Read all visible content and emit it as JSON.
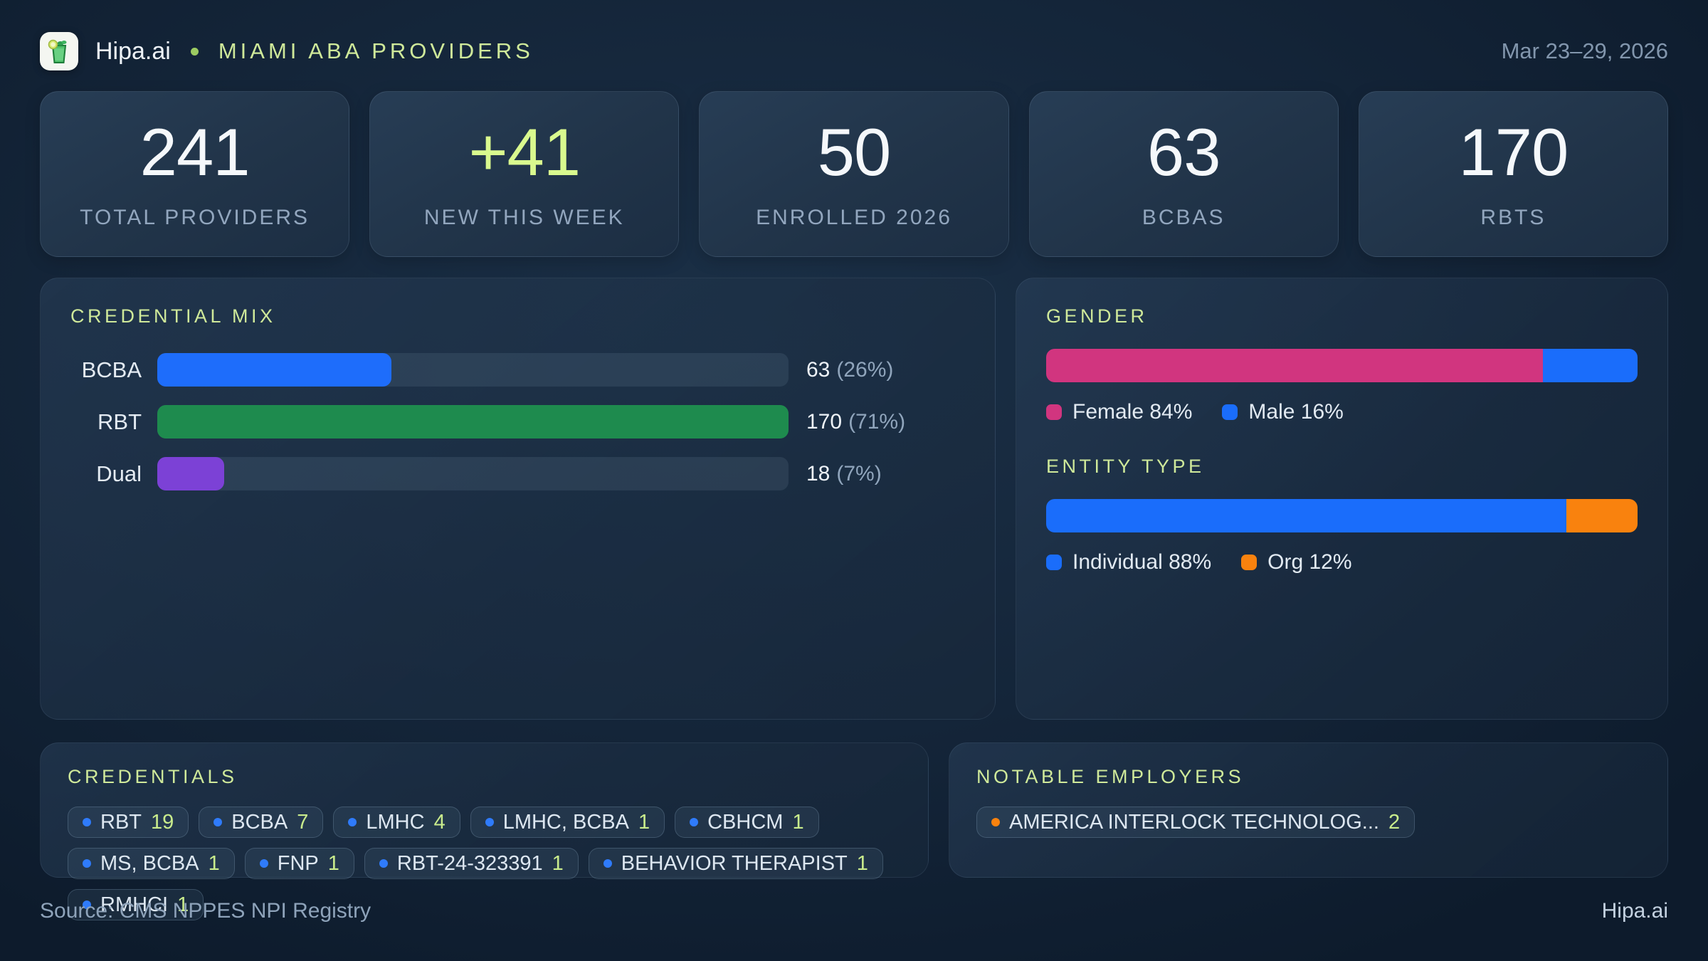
{
  "colors": {
    "accent_green": "#cfe99a",
    "highlight_lime": "#d9f98e",
    "chip_dot_blue": "#2f7bfb",
    "chip_dot_orange": "#f9820e"
  },
  "header": {
    "brand": "Hipa.ai",
    "title": "MIAMI ABA PROVIDERS",
    "date_range": "Mar 23–29, 2026"
  },
  "stats": [
    {
      "value": "241",
      "label": "TOTAL PROVIDERS",
      "accent": false
    },
    {
      "value": "+41",
      "label": "NEW THIS WEEK",
      "accent": true
    },
    {
      "value": "50",
      "label": "ENROLLED 2026",
      "accent": false
    },
    {
      "value": "63",
      "label": "BCBAS",
      "accent": false
    },
    {
      "value": "170",
      "label": "RBTS",
      "accent": false
    }
  ],
  "credential_mix": {
    "title": "CREDENTIAL MIX",
    "rows": [
      {
        "label": "BCBA",
        "value_text": "63",
        "pct_text": "(26%)",
        "color": "#1e6dfb",
        "bar_pct": 37.1
      },
      {
        "label": "RBT",
        "value_text": "170",
        "pct_text": "(71%)",
        "color": "#1e8b4e",
        "bar_pct": 100
      },
      {
        "label": "Dual",
        "value_text": "18",
        "pct_text": "(7%)",
        "color": "#7c41d6",
        "bar_pct": 10.6
      }
    ]
  },
  "gender": {
    "title": "GENDER",
    "segments": [
      {
        "label": "Female",
        "pct": 84,
        "color": "#d1357f"
      },
      {
        "label": "Male",
        "pct": 16,
        "color": "#1a6dfb"
      }
    ]
  },
  "entity_type": {
    "title": "ENTITY TYPE",
    "segments": [
      {
        "label": "Individual",
        "pct": 88,
        "color": "#1a6dfb"
      },
      {
        "label": "Org",
        "pct": 12,
        "color": "#f9820e"
      }
    ]
  },
  "credentials": {
    "title": "CREDENTIALS",
    "chips": [
      {
        "label": "RBT",
        "count": "19"
      },
      {
        "label": "BCBA",
        "count": "7"
      },
      {
        "label": "LMHC",
        "count": "4"
      },
      {
        "label": "LMHC, BCBA",
        "count": "1"
      },
      {
        "label": "CBHCM",
        "count": "1"
      },
      {
        "label": "MS, BCBA",
        "count": "1"
      },
      {
        "label": "FNP",
        "count": "1"
      },
      {
        "label": "RBT-24-323391",
        "count": "1"
      },
      {
        "label": "BEHAVIOR THERAPIST",
        "count": "1"
      },
      {
        "label": "RMHCI",
        "count": "1"
      }
    ]
  },
  "notable_employers": {
    "title": "NOTABLE EMPLOYERS",
    "chips": [
      {
        "label": "AMERICA INTERLOCK TECHNOLOG...",
        "count": "2"
      }
    ]
  },
  "footer": {
    "source": "Source: CMS NPPES NPI Registry",
    "brand": "Hipa.ai"
  },
  "chart_data": [
    {
      "type": "bar",
      "title": "CREDENTIAL MIX",
      "orientation": "horizontal",
      "categories": [
        "BCBA",
        "RBT",
        "Dual"
      ],
      "values": [
        63,
        170,
        18
      ],
      "percent_labels": [
        "26%",
        "71%",
        "7%"
      ],
      "colors": [
        "#1e6dfb",
        "#1e8b4e",
        "#7c41d6"
      ],
      "xlim": [
        0,
        170
      ],
      "grid": false
    },
    {
      "type": "bar",
      "title": "GENDER",
      "subtype": "stacked-100pct",
      "categories": [
        "Female",
        "Male"
      ],
      "values": [
        84,
        16
      ],
      "unit": "%",
      "colors": [
        "#d1357f",
        "#1a6dfb"
      ],
      "legend_position": "bottom"
    },
    {
      "type": "bar",
      "title": "ENTITY TYPE",
      "subtype": "stacked-100pct",
      "categories": [
        "Individual",
        "Org"
      ],
      "values": [
        88,
        12
      ],
      "unit": "%",
      "colors": [
        "#1a6dfb",
        "#f9820e"
      ],
      "legend_position": "bottom"
    }
  ]
}
